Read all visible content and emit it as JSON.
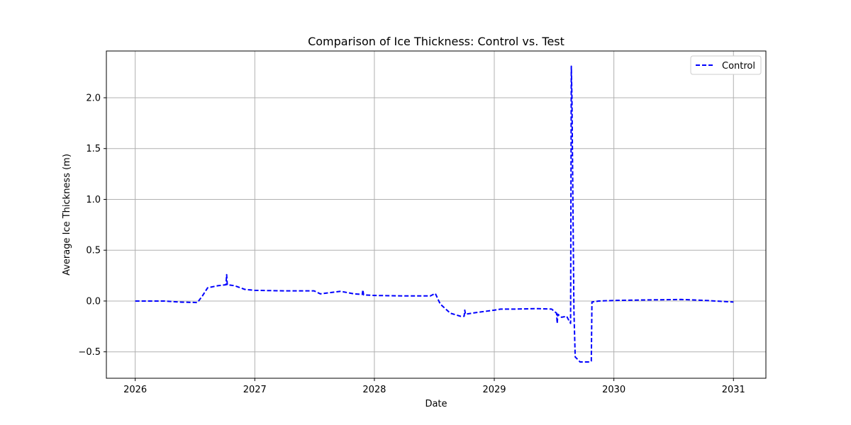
{
  "chart_data": {
    "type": "line",
    "title": "Comparison of Ice Thickness: Control vs. Test",
    "xlabel": "Date",
    "ylabel": "Average Ice Thickness (m)",
    "x_axis": "date",
    "xlim": [
      "2025-10-05",
      "2031-04-10"
    ],
    "ylim": [
      -0.76,
      2.46
    ],
    "xticks": [
      {
        "label": "2026",
        "value": "2026-01-01"
      },
      {
        "label": "2027",
        "value": "2027-01-01"
      },
      {
        "label": "2028",
        "value": "2028-01-01"
      },
      {
        "label": "2029",
        "value": "2029-01-01"
      },
      {
        "label": "2030",
        "value": "2030-01-01"
      },
      {
        "label": "2031",
        "value": "2031-01-01"
      }
    ],
    "yticks": [
      {
        "label": "−0.5",
        "value": -0.5
      },
      {
        "label": "0.0",
        "value": 0.0
      },
      {
        "label": "0.5",
        "value": 0.5
      },
      {
        "label": "1.0",
        "value": 1.0
      },
      {
        "label": "1.5",
        "value": 1.5
      },
      {
        "label": "2.0",
        "value": 2.0
      }
    ],
    "grid": true,
    "legend_position": "top-right",
    "series": [
      {
        "name": "Control",
        "color": "#0000ff",
        "style": "dashed",
        "points": [
          {
            "x": "2026-01-01",
            "y": 0.0
          },
          {
            "x": "2026-04-01",
            "y": 0.0
          },
          {
            "x": "2026-05-15",
            "y": -0.01
          },
          {
            "x": "2026-07-10",
            "y": -0.015
          },
          {
            "x": "2026-07-25",
            "y": 0.05
          },
          {
            "x": "2026-08-10",
            "y": 0.13
          },
          {
            "x": "2026-09-10",
            "y": 0.15
          },
          {
            "x": "2026-10-05",
            "y": 0.16
          },
          {
            "x": "2026-10-07",
            "y": 0.26
          },
          {
            "x": "2026-10-09",
            "y": 0.16
          },
          {
            "x": "2026-11-01",
            "y": 0.15
          },
          {
            "x": "2026-12-01",
            "y": 0.115
          },
          {
            "x": "2027-01-01",
            "y": 0.105
          },
          {
            "x": "2027-04-01",
            "y": 0.1
          },
          {
            "x": "2027-07-01",
            "y": 0.1
          },
          {
            "x": "2027-07-20",
            "y": 0.07
          },
          {
            "x": "2027-09-20",
            "y": 0.095
          },
          {
            "x": "2027-11-01",
            "y": 0.07
          },
          {
            "x": "2027-11-25",
            "y": 0.065
          },
          {
            "x": "2027-11-27",
            "y": 0.11
          },
          {
            "x": "2027-11-29",
            "y": 0.06
          },
          {
            "x": "2028-01-01",
            "y": 0.055
          },
          {
            "x": "2028-04-01",
            "y": 0.05
          },
          {
            "x": "2028-06-20",
            "y": 0.05
          },
          {
            "x": "2028-07-05",
            "y": 0.075
          },
          {
            "x": "2028-07-20",
            "y": -0.03
          },
          {
            "x": "2028-08-20",
            "y": -0.12
          },
          {
            "x": "2028-09-20",
            "y": -0.15
          },
          {
            "x": "2028-10-01",
            "y": -0.15
          },
          {
            "x": "2028-10-03",
            "y": -0.09
          },
          {
            "x": "2028-10-05",
            "y": -0.13
          },
          {
            "x": "2028-11-15",
            "y": -0.11
          },
          {
            "x": "2029-01-01",
            "y": -0.09
          },
          {
            "x": "2029-01-20",
            "y": -0.08
          },
          {
            "x": "2029-03-01",
            "y": -0.08
          },
          {
            "x": "2029-05-15",
            "y": -0.075
          },
          {
            "x": "2029-06-25",
            "y": -0.08
          },
          {
            "x": "2029-07-10",
            "y": -0.12
          },
          {
            "x": "2029-07-12",
            "y": -0.22
          },
          {
            "x": "2029-07-14",
            "y": -0.13
          },
          {
            "x": "2029-07-25",
            "y": -0.16
          },
          {
            "x": "2029-08-10",
            "y": -0.15
          },
          {
            "x": "2029-08-18",
            "y": -0.2
          },
          {
            "x": "2029-08-22",
            "y": -0.22
          },
          {
            "x": "2029-08-24",
            "y": 2.31
          },
          {
            "x": "2029-08-26",
            "y": 2.0
          },
          {
            "x": "2029-09-01",
            "y": -0.1
          },
          {
            "x": "2029-09-05",
            "y": -0.55
          },
          {
            "x": "2029-09-20",
            "y": -0.6
          },
          {
            "x": "2029-10-20",
            "y": -0.6
          },
          {
            "x": "2029-10-24",
            "y": -0.59
          },
          {
            "x": "2029-10-26",
            "y": -0.01
          },
          {
            "x": "2029-11-15",
            "y": 0.0
          },
          {
            "x": "2030-01-01",
            "y": 0.005
          },
          {
            "x": "2030-04-01",
            "y": 0.01
          },
          {
            "x": "2030-07-25",
            "y": 0.015
          },
          {
            "x": "2030-10-10",
            "y": 0.005
          },
          {
            "x": "2031-01-01",
            "y": -0.01
          }
        ]
      }
    ]
  }
}
